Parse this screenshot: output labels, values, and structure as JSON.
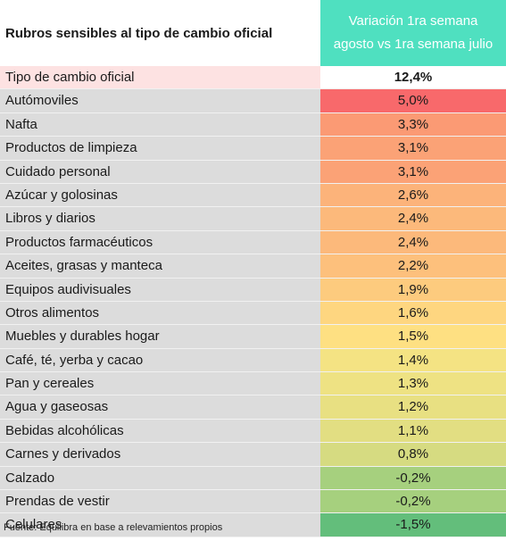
{
  "header": {
    "title": "Rubros sensibles al tipo de cambio oficial",
    "column_line1": "Variación 1ra semana",
    "column_line2": "agosto vs 1ra semana julio",
    "column_color": "#4fe0c0"
  },
  "rows": [
    {
      "label": "Tipo de cambio oficial",
      "value": "12,4%",
      "color": "#ffffff"
    },
    {
      "label": "Autómoviles",
      "value": "5,0%",
      "color": "#f8696b"
    },
    {
      "label": "Nafta",
      "value": "3,3%",
      "color": "#fb9a74"
    },
    {
      "label": "Productos de limpieza",
      "value": "3,1%",
      "color": "#fba276"
    },
    {
      "label": "Cuidado personal",
      "value": "3,1%",
      "color": "#fba276"
    },
    {
      "label": "Azúcar y golosinas",
      "value": "2,6%",
      "color": "#fcb37a"
    },
    {
      "label": "Libros y diarios",
      "value": "2,4%",
      "color": "#fcb97b"
    },
    {
      "label": "Productos farmacéuticos",
      "value": "2,4%",
      "color": "#fcb97b"
    },
    {
      "label": "Aceites, grasas y manteca",
      "value": "2,2%",
      "color": "#fdc07c"
    },
    {
      "label": "Equipos audivisuales",
      "value": "1,9%",
      "color": "#fdcb7e"
    },
    {
      "label": "Otros alimentos",
      "value": "1,6%",
      "color": "#fed680"
    },
    {
      "label": "Muebles y durables hogar",
      "value": "1,5%",
      "color": "#fee082"
    },
    {
      "label": "Café, té, yerba y cacao",
      "value": "1,4%",
      "color": "#f4e383"
    },
    {
      "label": "Pan y cereales",
      "value": "1,3%",
      "color": "#eee283"
    },
    {
      "label": "Agua y gaseosas",
      "value": "1,2%",
      "color": "#e8e082"
    },
    {
      "label": "Bebidas alcohólicas",
      "value": "1,1%",
      "color": "#e2de82"
    },
    {
      "label": "Carnes y derivados",
      "value": "0,8%",
      "color": "#d6db81"
    },
    {
      "label": "Calzado",
      "value": "-0,2%",
      "color": "#a6d07e"
    },
    {
      "label": "Prendas de vestir",
      "value": "-0,2%",
      "color": "#a6d07e"
    },
    {
      "label": "Celulares",
      "value": "-1,5%",
      "color": "#63be7b"
    }
  ],
  "source": "Fuente: Equilibra en base a relevamientos propios"
}
